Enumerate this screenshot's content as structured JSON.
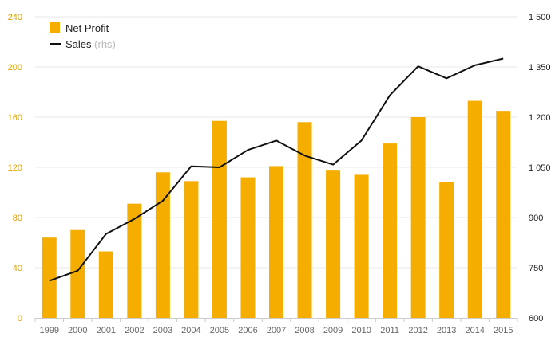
{
  "chart_data": {
    "type": "bar",
    "categories": [
      "1999",
      "2000",
      "2001",
      "2002",
      "2003",
      "2004",
      "2005",
      "2006",
      "2007",
      "2008",
      "2009",
      "2010",
      "2011",
      "2012",
      "2013",
      "2014",
      "2015"
    ],
    "series": [
      {
        "name": "Net Profit",
        "type": "bar",
        "axis": "left",
        "values": [
          64,
          70,
          53,
          91,
          116,
          109,
          157,
          112,
          121,
          156,
          118,
          114,
          139,
          160,
          108,
          173,
          165
        ]
      },
      {
        "name": "Sales",
        "type": "line",
        "axis": "right",
        "values": [
          711,
          741,
          851,
          896,
          950,
          1053,
          1050,
          1102,
          1130,
          1085,
          1058,
          1130,
          1265,
          1352,
          1316,
          1355,
          1375
        ]
      }
    ],
    "legend": [
      {
        "label": "Net Profit",
        "suffix": ""
      },
      {
        "label": "Sales",
        "suffix": "(rhs)"
      }
    ],
    "yleft": {
      "ticks": [
        0,
        40,
        80,
        120,
        160,
        200,
        240
      ],
      "tick_labels": [
        "0",
        "40",
        "80",
        "120",
        "160",
        "200",
        "240"
      ],
      "ylim": [
        0,
        240
      ]
    },
    "yright": {
      "ticks": [
        600,
        750,
        900,
        1050,
        1200,
        1350,
        1500
      ],
      "tick_labels": [
        "600",
        "750",
        "900",
        "1 050",
        "1 200",
        "1 350",
        "1 500"
      ],
      "ylim": [
        600,
        1500
      ]
    },
    "legend_position": "top-left",
    "grid": true,
    "colors": {
      "bar": "#f5ae00",
      "line": "#111111",
      "left_axis_text": "#e0a100",
      "grid": "#e8e8e8"
    }
  }
}
